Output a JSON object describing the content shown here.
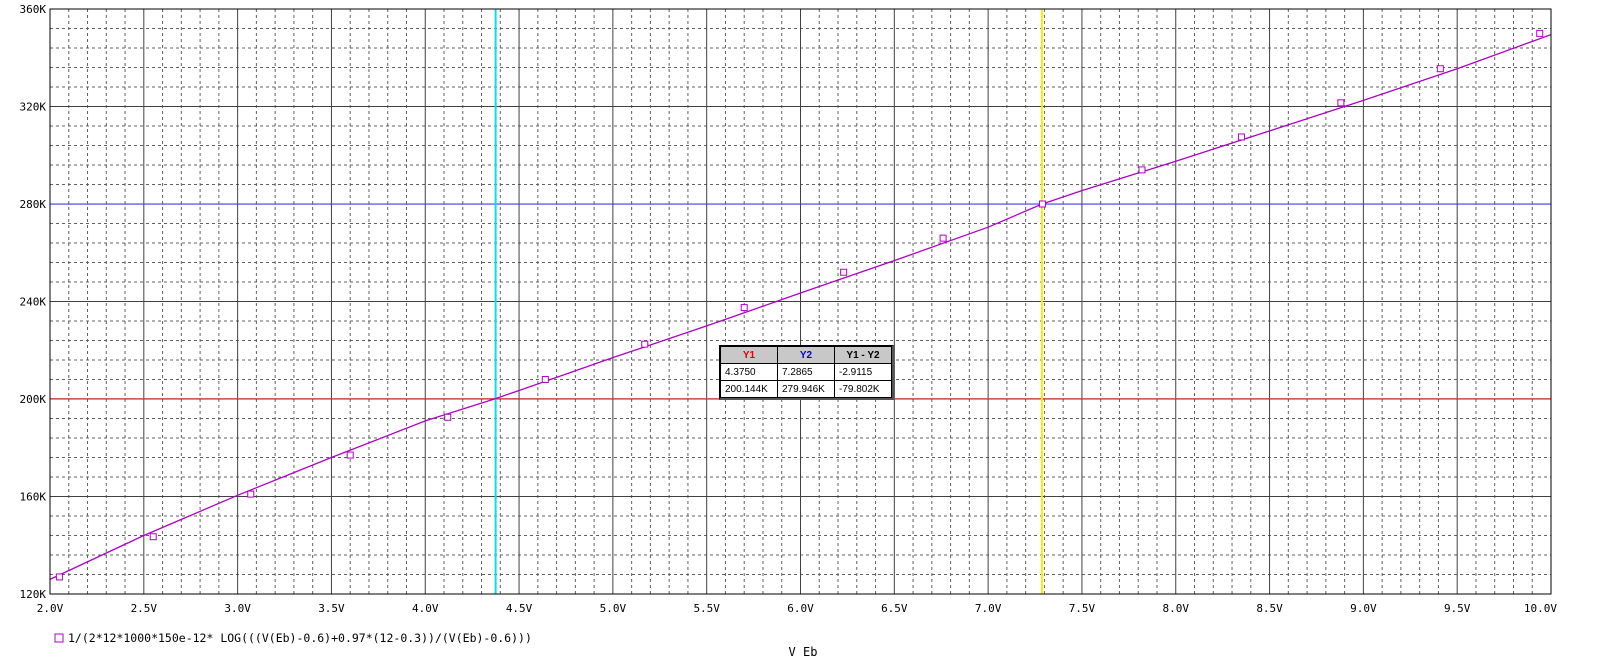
{
  "colors": {
    "background": "#ffffff",
    "trace": "#b000c8",
    "cursor1": "#00e0f0",
    "cursor2": "#f0f000",
    "cursor1_hline": "#d04040",
    "cursor2_hline": "#4040e0",
    "grid_major": "#404040",
    "grid_minor": "#606060"
  },
  "chart_data": {
    "type": "line",
    "xlabel": "V_Eb",
    "xlim": [
      2.0,
      10.0
    ],
    "ylim": [
      120000,
      360000
    ],
    "grid": true,
    "x_ticks": [
      2.0,
      2.5,
      3.0,
      3.5,
      4.0,
      4.5,
      5.0,
      5.5,
      6.0,
      6.5,
      7.0,
      7.5,
      8.0,
      8.5,
      9.0,
      9.5,
      10.0
    ],
    "x_tick_labels": [
      "2.0V",
      "2.5V",
      "3.0V",
      "3.5V",
      "4.0V",
      "4.5V",
      "5.0V",
      "5.5V",
      "6.0V",
      "6.5V",
      "7.0V",
      "7.5V",
      "8.0V",
      "8.5V",
      "9.0V",
      "9.5V",
      "10.0V"
    ],
    "y_ticks": [
      120000,
      160000,
      200000,
      240000,
      280000,
      320000,
      360000
    ],
    "y_tick_labels": [
      "120K",
      "160K",
      "200K",
      "240K",
      "280K",
      "320K",
      "360K"
    ],
    "series": [
      {
        "name": "1/(2*12*1000*150e-12* LOG(((V(Eb)-0.6)+0.97*(12-0.3))/(V(Eb)-0.6)))",
        "marker": "square",
        "x": [
          2.0,
          2.5,
          3.0,
          3.5,
          4.0,
          4.375,
          4.5,
          5.0,
          5.5,
          6.0,
          6.5,
          7.0,
          7.2865,
          7.5,
          8.0,
          8.5,
          9.0,
          9.5,
          10.0
        ],
        "y": [
          126000,
          144000,
          160500,
          176000,
          191000,
          200144,
          203500,
          217000,
          230000,
          243500,
          256800,
          270500,
          279946,
          285500,
          297500,
          310000,
          322500,
          335500,
          349500
        ],
        "marker_x": [
          2.05,
          2.55,
          3.07,
          3.6,
          4.12,
          4.64,
          5.17,
          5.7,
          6.23,
          6.76,
          7.29,
          7.82,
          8.35,
          8.88,
          9.41,
          9.94
        ],
        "marker_y": [
          127000,
          143500,
          161000,
          177000,
          192500,
          208000,
          222500,
          237500,
          252000,
          266000,
          280000,
          294000,
          307500,
          321500,
          335500,
          350000
        ]
      }
    ],
    "cursors": {
      "x1": 4.375,
      "x2": 7.2865,
      "y1": 200144,
      "y2": 279946
    }
  },
  "cursor_table": {
    "headers": [
      "Y1",
      "Y2",
      "Y1 - Y2"
    ],
    "header_colors": [
      "#e00000",
      "#0000e0",
      "#000000"
    ],
    "rows": [
      [
        "4.3750",
        "7.2865",
        "-2.9115"
      ],
      [
        "200.144K",
        "279.946K",
        "-79.802K"
      ]
    ]
  }
}
